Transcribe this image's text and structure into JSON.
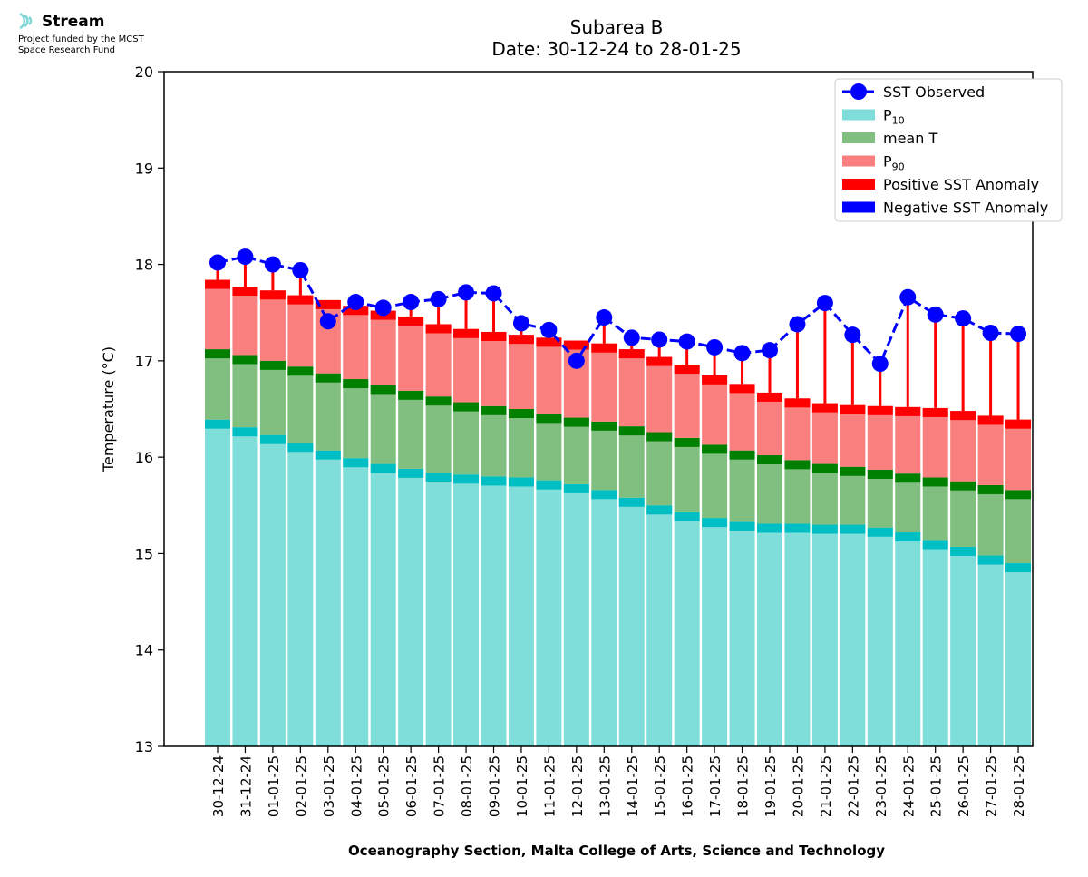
{
  "logo": {
    "name": "Stream",
    "line1": "Project funded by the MCST",
    "line2": "Space Research Fund"
  },
  "chart_data": {
    "type": "bar",
    "title": "Subarea B",
    "subtitle": "Date: 30-12-24 to 28-01-25",
    "xlabel": "Oceanography Section, Malta College of Arts, Science and Technology",
    "ylabel": "Temperature (°C)",
    "ylim": [
      13,
      20
    ],
    "yticks": [
      13,
      14,
      15,
      16,
      17,
      18,
      19,
      20
    ],
    "grid": false,
    "legend_position": "top-right",
    "categories": [
      "30-12-24",
      "31-12-24",
      "01-01-25",
      "02-01-25",
      "03-01-25",
      "04-01-25",
      "05-01-25",
      "06-01-25",
      "07-01-25",
      "08-01-25",
      "09-01-25",
      "10-01-25",
      "11-01-25",
      "12-01-25",
      "13-01-25",
      "14-01-25",
      "15-01-25",
      "16-01-25",
      "17-01-25",
      "18-01-25",
      "19-01-25",
      "20-01-25",
      "21-01-25",
      "22-01-25",
      "23-01-25",
      "24-01-25",
      "25-01-25",
      "26-01-25",
      "27-01-25",
      "28-01-25"
    ],
    "series": [
      {
        "name": "P10",
        "color": "#80deda",
        "band_color": "#00bfc4",
        "values": [
          16.39,
          16.31,
          16.23,
          16.15,
          16.07,
          15.99,
          15.93,
          15.88,
          15.84,
          15.82,
          15.8,
          15.79,
          15.76,
          15.72,
          15.66,
          15.58,
          15.5,
          15.43,
          15.37,
          15.33,
          15.31,
          15.31,
          15.3,
          15.3,
          15.27,
          15.22,
          15.14,
          15.07,
          14.98,
          14.9
        ]
      },
      {
        "name": "mean T",
        "color": "#80bf80",
        "band_color": "#008000",
        "values": [
          17.12,
          17.06,
          17.0,
          16.94,
          16.87,
          16.81,
          16.75,
          16.69,
          16.63,
          16.57,
          16.53,
          16.5,
          16.45,
          16.41,
          16.37,
          16.32,
          16.26,
          16.2,
          16.13,
          16.07,
          16.02,
          15.97,
          15.93,
          15.9,
          15.87,
          15.83,
          15.79,
          15.75,
          15.71,
          15.66
        ]
      },
      {
        "name": "P90",
        "color": "#fa8080",
        "band_color": "#ff0000",
        "values": [
          17.84,
          17.77,
          17.73,
          17.68,
          17.63,
          17.57,
          17.52,
          17.46,
          17.38,
          17.33,
          17.3,
          17.27,
          17.24,
          17.21,
          17.18,
          17.12,
          17.04,
          16.96,
          16.85,
          16.76,
          16.67,
          16.61,
          16.56,
          16.54,
          16.53,
          16.52,
          16.51,
          16.48,
          16.43,
          16.39
        ]
      },
      {
        "name": "SST Observed",
        "color": "#0000ff",
        "values": [
          18.02,
          18.08,
          18.0,
          17.94,
          17.41,
          17.61,
          17.55,
          17.61,
          17.64,
          17.71,
          17.7,
          17.39,
          17.32,
          17.0,
          17.45,
          17.24,
          17.22,
          17.2,
          17.14,
          17.08,
          17.11,
          17.38,
          17.6,
          17.27,
          16.97,
          17.66,
          17.48,
          17.44,
          17.29,
          17.28
        ]
      }
    ],
    "legend": [
      {
        "label": "SST Observed",
        "kind": "line-marker",
        "color": "#0000ff"
      },
      {
        "label": "P",
        "sub": "10",
        "kind": "patch",
        "color": "#80deda"
      },
      {
        "label": "mean T",
        "kind": "patch",
        "color": "#80bf80"
      },
      {
        "label": "P",
        "sub": "90",
        "kind": "patch",
        "color": "#fa8080"
      },
      {
        "label": "Positive SST Anomaly",
        "kind": "patch",
        "color": "#ff0000"
      },
      {
        "label": "Negative SST Anomaly",
        "kind": "patch",
        "color": "#0000ff"
      }
    ]
  }
}
